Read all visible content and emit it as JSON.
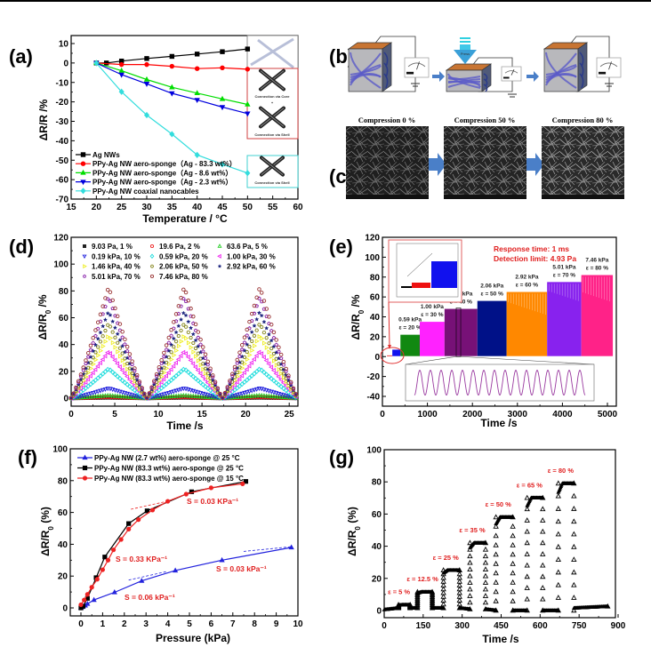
{
  "figure": {
    "panel_labels": [
      "(a)",
      "(b)",
      "(c)",
      "(d)",
      "(e)",
      "(f)",
      "(g)"
    ]
  },
  "schematic_b": {
    "press_label": "Press"
  },
  "sem_c": {
    "captions": [
      "Compression 0 %",
      "Compression 50 %",
      "Compression 80 %"
    ]
  },
  "chart_data": [
    {
      "id": "a",
      "type": "line",
      "title": "",
      "xlabel": "Temperature / °C",
      "ylabel": "ΔR/R /%",
      "xlim": [
        15,
        60
      ],
      "ylim": [
        -70,
        13
      ],
      "xticks": [
        15,
        20,
        25,
        30,
        35,
        40,
        45,
        50,
        55,
        60
      ],
      "yticks": [
        10,
        0,
        -10,
        -20,
        -30,
        -40,
        -50,
        -60,
        -70
      ],
      "legend_position": "bottom-left",
      "series": [
        {
          "name": "Ag NWs",
          "color": "#000000",
          "marker": "square",
          "x": [
            20,
            22,
            25,
            30,
            35,
            40,
            45,
            50
          ],
          "y": [
            0,
            0,
            1,
            2.3,
            3.4,
            4.6,
            5.8,
            7.2
          ]
        },
        {
          "name": "PPy-Ag NW aero-sponge（Ag - 83.3 wt%）",
          "color": "#ff0000",
          "marker": "circle",
          "x": [
            20,
            25,
            30,
            35,
            40,
            45,
            50
          ],
          "y": [
            0,
            -0.8,
            -0.8,
            -1.7,
            -2.9,
            -2.5,
            -3.2
          ]
        },
        {
          "name": "PPy-Ag NW aero-sponge（Ag - 8.6 wt%）",
          "color": "#00dd00",
          "marker": "triangle-up",
          "x": [
            20,
            25,
            30,
            35,
            40,
            45,
            50
          ],
          "y": [
            0,
            -4,
            -8.5,
            -12.5,
            -15.5,
            -18.5,
            -21.3
          ]
        },
        {
          "name": "PPy-Ag NW aero-sponge（Ag - 2.3 wt%）",
          "color": "#0000dd",
          "marker": "triangle-down",
          "x": [
            20,
            25,
            30,
            35,
            40,
            45,
            50
          ],
          "y": [
            0,
            -6,
            -10.7,
            -15.6,
            -19,
            -22.7,
            -26
          ]
        },
        {
          "name": "PPy-Ag NW coaxial nanocables",
          "color": "#33dddd",
          "marker": "diamond",
          "x": [
            20,
            25,
            30,
            35,
            40,
            45,
            50
          ],
          "y": [
            0,
            -14.8,
            -26.8,
            -36.6,
            -47.3,
            -52.1,
            -56.6
          ]
        }
      ],
      "insets": [
        "Connection via Core",
        "+",
        "Connection via Shell",
        "Connection via Shell"
      ]
    },
    {
      "id": "d",
      "type": "scatter",
      "title": "",
      "xlabel": "Time /s",
      "ylabel": "ΔR/R0 /%",
      "xlim": [
        0,
        26
      ],
      "ylim": [
        -5,
        120
      ],
      "xticks": [
        0,
        5,
        10,
        15,
        20,
        25
      ],
      "yticks": [
        0,
        20,
        40,
        60,
        80,
        100,
        120
      ],
      "legend_position": "top",
      "peak_times": [
        4.3,
        13,
        21.7
      ],
      "valley_times": [
        0,
        8.6,
        17.3,
        26
      ],
      "series": [
        {
          "name": "9.03 Pa, 1 %",
          "color": "#222222",
          "marker": "square",
          "peak": 0.4
        },
        {
          "name": "19.6 Pa, 2 %",
          "color": "#ee2222",
          "marker": "circle",
          "peak": 0.8
        },
        {
          "name": "63.6 Pa, 5 %",
          "color": "#22cc22",
          "marker": "triangle-up",
          "peak": 2
        },
        {
          "name": "0.19 kPa, 10 %",
          "color": "#2222dd",
          "marker": "triangle-down",
          "peak": 7.5
        },
        {
          "name": "0.59 kPa, 20 %",
          "color": "#22dddd",
          "marker": "diamond",
          "peak": 22
        },
        {
          "name": "1.00 kPa, 30 %",
          "color": "#ee22ee",
          "marker": "triangle-left",
          "peak": 35
        },
        {
          "name": "1.46 kPa, 40 %",
          "color": "#eeee22",
          "marker": "triangle-right",
          "peak": 47
        },
        {
          "name": "2.06 kPa, 50 %",
          "color": "#888822",
          "marker": "hexagon",
          "peak": 56
        },
        {
          "name": "2.92 kPa, 60 %",
          "color": "#1a237e",
          "marker": "star",
          "peak": 65
        },
        {
          "name": "5.01 kPa, 70 %",
          "color": "#8822aa",
          "marker": "pentagon",
          "peak": 76
        },
        {
          "name": "7.46 kPa, 80 %",
          "color": "#993333",
          "marker": "circle",
          "peak": 83
        }
      ]
    },
    {
      "id": "e",
      "type": "area",
      "title": "",
      "xlabel": "Time /s",
      "ylabel": "ΔR/R0 /%",
      "xlim": [
        0,
        5200
      ],
      "ylim": [
        -45,
        120
      ],
      "xticks": [
        0,
        1000,
        2000,
        3000,
        4000,
        5000
      ],
      "yticks": [
        -40,
        -20,
        0,
        20,
        40,
        60,
        80,
        100,
        120
      ],
      "annotations": [
        "Response time: 1 ms",
        "Detection limit: 4.93 Pa"
      ],
      "series": [
        {
          "name": "red",
          "color": "#ee1111",
          "x_range": [
            100,
            220
          ],
          "value": 1.2,
          "label": ""
        },
        {
          "name": "blue",
          "color": "#1111ee",
          "x_range": [
            220,
            400
          ],
          "value": 7,
          "label": ""
        },
        {
          "name": "0.59 kPa",
          "strain": "ε = 20 %",
          "color": "#118811",
          "x_range": [
            400,
            830
          ],
          "value": 22
        },
        {
          "name": "1.00 kPa",
          "strain": "ε = 30 %",
          "color": "#ff22ff",
          "x_range": [
            830,
            1380
          ],
          "value": 35
        },
        {
          "name": "1.46 kPa",
          "strain": "ε = 40 %",
          "color": "#771177",
          "x_range": [
            1380,
            2110
          ],
          "value": 48
        },
        {
          "name": "2.06 kPa",
          "strain": "ε = 50 %",
          "color": "#001188",
          "x_range": [
            2110,
            2760
          ],
          "value": 56
        },
        {
          "name": "2.92 kPa",
          "strain": "ε = 60 %",
          "color": "#ff8800",
          "x_range": [
            2760,
            3660
          ],
          "value": 65
        },
        {
          "name": "5.01 kPa",
          "strain": "ε = 70 %",
          "color": "#8822ee",
          "x_range": [
            3660,
            4420
          ],
          "value": 75
        },
        {
          "name": "7.46 kPa",
          "strain": "ε = 80 %",
          "color": "#ff2288",
          "x_range": [
            4420,
            5120
          ],
          "value": 82
        }
      ]
    },
    {
      "id": "f",
      "type": "line",
      "title": "",
      "xlabel": "Pressure (kPa)",
      "ylabel": "ΔR/R0 (%)",
      "xlim": [
        -0.5,
        10
      ],
      "ylim": [
        -5,
        100
      ],
      "xticks": [
        0,
        1,
        2,
        3,
        4,
        5,
        6,
        7,
        8,
        9,
        10
      ],
      "yticks": [
        0,
        20,
        40,
        60,
        80,
        100
      ],
      "legend_position": "top-left",
      "series": [
        {
          "name": "PPy-Ag NW (2.7 wt%) aero-sponge @ 25 °C",
          "color": "#2222dd",
          "marker": "triangle-up",
          "x": [
            0,
            0.05,
            0.1,
            0.2,
            0.3,
            0.6,
            1.55,
            2.8,
            4.35,
            6.5,
            9.7
          ],
          "y": [
            0,
            0.5,
            1,
            1.5,
            2.5,
            5,
            9.8,
            17,
            23.5,
            30,
            38
          ]
        },
        {
          "name": "PPy-Ag NW (83.3 wt%) aero-sponge @ 25 °C",
          "color": "#000000",
          "marker": "square",
          "x": [
            0,
            0.1,
            0.3,
            0.7,
            1.1,
            2.2,
            3.05,
            5.1,
            7.6
          ],
          "y": [
            0,
            1,
            6,
            19,
            32,
            53,
            61,
            73,
            79.5
          ]
        },
        {
          "name": "PPy-Ag NW (83.3 wt%) aero-sponge @ 15 °C",
          "color": "#ee2222",
          "marker": "circle",
          "x": [
            0,
            0.15,
            0.3,
            0.5,
            0.75,
            1.0,
            1.25,
            1.5,
            1.85,
            2.2,
            2.65,
            3.3,
            4.0,
            4.85,
            6.0,
            7.45
          ],
          "y": [
            2,
            5,
            8.5,
            13,
            18,
            24,
            30,
            36.5,
            43,
            49.5,
            55.5,
            61.5,
            67,
            71.5,
            75.5,
            78
          ]
        }
      ],
      "annotations": [
        {
          "text": "S = 0.03 KPa⁻¹",
          "color": "#ee2222"
        },
        {
          "text": "S = 0.33 KPa⁻¹",
          "color": "#ee2222"
        },
        {
          "text": "S = 0.06 kPa⁻¹",
          "color": "#2222dd"
        },
        {
          "text": "S = 0.03 kPa⁻¹",
          "color": "#2222dd"
        }
      ]
    },
    {
      "id": "g",
      "type": "scatter",
      "title": "",
      "xlabel": "Time /s",
      "ylabel": "ΔR/R0 (%)",
      "xlim": [
        0,
        900
      ],
      "ylim": [
        -5,
        100
      ],
      "xticks": [
        0,
        150,
        300,
        450,
        600,
        750,
        900
      ],
      "yticks": [
        0,
        20,
        40,
        60,
        80,
        100
      ],
      "steps": [
        {
          "label": "ε = 5 %",
          "on": [
            55,
            100
          ],
          "base": 1.5,
          "value": 3.5
        },
        {
          "label": "ε = 12.5 %",
          "on": [
            128,
            185
          ],
          "base": 1.5,
          "value": 11.5
        },
        {
          "label": "ε = 25 %",
          "on": [
            228,
            290
          ],
          "base": 1.5,
          "value": 25
        },
        {
          "label": "ε = 35 %",
          "on": [
            330,
            390
          ],
          "base": 0.8,
          "value": 42
        },
        {
          "label": "ε = 50 %",
          "on": [
            430,
            495
          ],
          "base": 0,
          "value": 58
        },
        {
          "label": "ε = 65 %",
          "on": [
            550,
            610
          ],
          "base": 0,
          "value": 70
        },
        {
          "label": "ε = 80 %",
          "on": [
            670,
            730
          ],
          "base": 0,
          "value": 79
        }
      ],
      "baseline_end": [
        730,
        860,
        1.5,
        2.5
      ]
    }
  ]
}
